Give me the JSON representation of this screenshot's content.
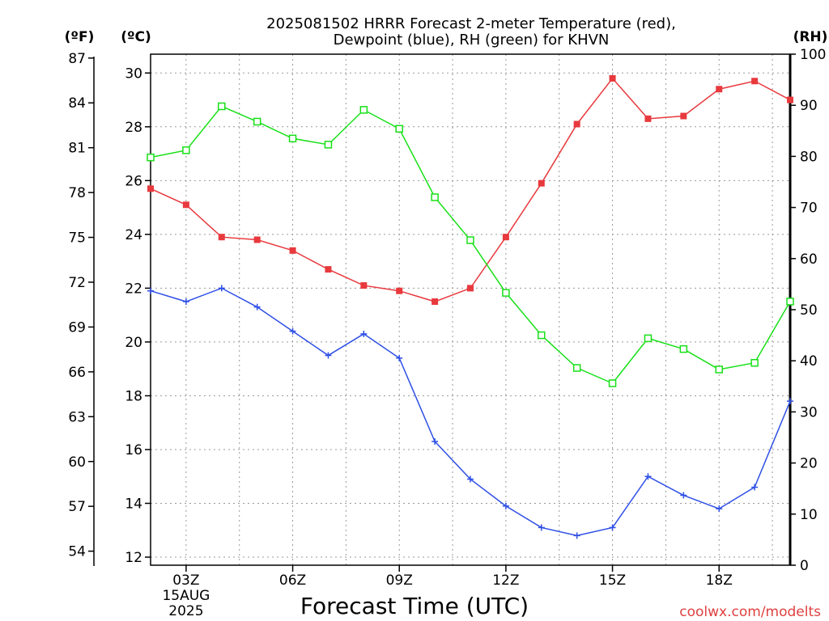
{
  "chart_data": {
    "type": "line",
    "title": [
      "2025081502 HRRR Forecast 2-meter Temperature (red),",
      "Dewpoint (blue), RH (green) for KHVN"
    ],
    "xlabel": "Forecast Time (UTC)",
    "credit": "coolwx.com/modelts",
    "axis_units": {
      "fahrenheit": "(ºF)",
      "celsius": "(ºC)",
      "rh": "(RH)"
    },
    "x_hours": [
      2,
      3,
      4,
      5,
      6,
      7,
      8,
      9,
      10,
      11,
      12,
      13,
      14,
      15,
      16,
      17,
      18,
      19,
      20
    ],
    "x_range": [
      2,
      20
    ],
    "x_ticks": [
      {
        "hour": 3,
        "lines": [
          "03Z",
          "15AUG",
          "2025"
        ]
      },
      {
        "hour": 6,
        "lines": [
          "06Z"
        ]
      },
      {
        "hour": 9,
        "lines": [
          "09Z"
        ]
      },
      {
        "hour": 12,
        "lines": [
          "12Z"
        ]
      },
      {
        "hour": 15,
        "lines": [
          "15Z"
        ]
      },
      {
        "hour": 18,
        "lines": [
          "18Z"
        ]
      }
    ],
    "celsius_axis": {
      "range": [
        11.7,
        30.7
      ],
      "ticks": [
        12,
        14,
        16,
        18,
        20,
        22,
        24,
        26,
        28,
        30
      ]
    },
    "fahrenheit_axis": {
      "ticks": [
        54,
        57,
        60,
        63,
        66,
        69,
        72,
        75,
        78,
        81,
        84,
        87
      ]
    },
    "rh_axis": {
      "range": [
        0,
        100
      ],
      "ticks": [
        0,
        10,
        20,
        30,
        40,
        50,
        60,
        70,
        80,
        90,
        100
      ]
    },
    "grid": true,
    "series": [
      {
        "name": "Temperature",
        "axis": "celsius",
        "color": "#e8393d",
        "marker": "filled-square",
        "values": [
          25.7,
          25.1,
          23.9,
          23.8,
          23.4,
          22.7,
          22.1,
          21.9,
          21.5,
          22.0,
          23.9,
          25.9,
          28.1,
          29.8,
          28.3,
          28.4,
          29.4,
          29.7,
          29.0
        ]
      },
      {
        "name": "Dewpoint",
        "axis": "celsius",
        "color": "#2e4fe6",
        "marker": "plus",
        "values": [
          21.9,
          21.5,
          22.0,
          21.3,
          20.4,
          19.5,
          20.3,
          19.4,
          16.3,
          14.9,
          13.9,
          13.1,
          12.8,
          13.1,
          15.0,
          14.3,
          13.8,
          14.6,
          17.8
        ]
      },
      {
        "name": "RH",
        "axis": "rh",
        "color": "#18e018",
        "marker": "open-square",
        "values": [
          79.8,
          81.2,
          89.8,
          86.8,
          83.5,
          82.3,
          89.1,
          85.4,
          72.0,
          63.6,
          53.3,
          45.0,
          38.6,
          35.6,
          44.4,
          42.3,
          38.3,
          39.6,
          51.6
        ]
      }
    ]
  }
}
